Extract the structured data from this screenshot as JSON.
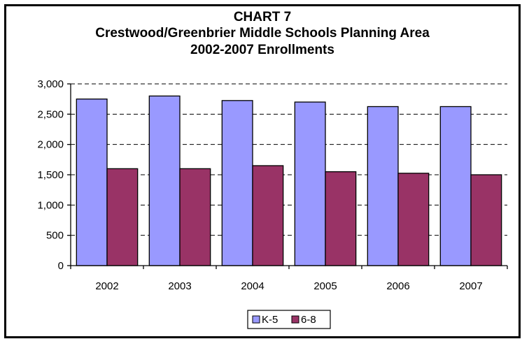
{
  "chart_data": {
    "type": "bar",
    "title_lines": [
      "CHART 7",
      "Crestwood/Greenbrier Middle Schools Planning Area",
      "2002-2007 Enrollments"
    ],
    "categories": [
      "2002",
      "2003",
      "2004",
      "2005",
      "2006",
      "2007"
    ],
    "series": [
      {
        "name": "K-5",
        "color": "#9999ff",
        "values": [
          2750,
          2800,
          2725,
          2700,
          2625,
          2625
        ]
      },
      {
        "name": "6-8",
        "color": "#993366",
        "values": [
          1600,
          1600,
          1650,
          1550,
          1525,
          1500
        ]
      }
    ],
    "ylim": [
      0,
      3000
    ],
    "yticks": [
      0,
      500,
      1000,
      1500,
      2000,
      2500,
      3000
    ],
    "ytick_labels": [
      "0",
      "500",
      "1,000",
      "1,500",
      "2,000",
      "2,500",
      "3,000"
    ],
    "xlabel": "",
    "ylabel": "",
    "grid": "horizontal dashed",
    "legend_position": "bottom"
  }
}
